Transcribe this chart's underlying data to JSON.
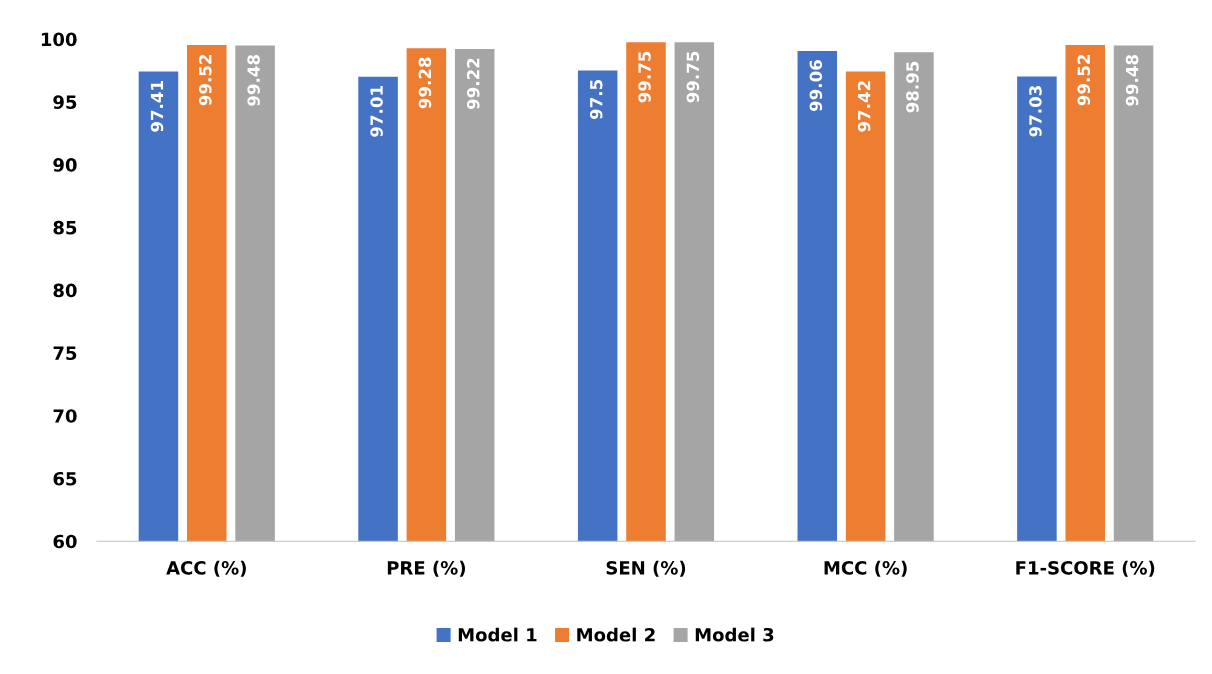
{
  "chart_data": {
    "type": "bar",
    "categories": [
      "ACC (%)",
      "PRE (%)",
      "SEN (%)",
      "MCC (%)",
      "F1-SCORE (%)"
    ],
    "series": [
      {
        "name": "Model 1",
        "color": "#4472c4",
        "values": [
          97.41,
          97.01,
          97.5,
          99.06,
          97.03
        ]
      },
      {
        "name": "Model 2",
        "color": "#ed7d31",
        "values": [
          99.52,
          99.28,
          99.75,
          97.42,
          99.52
        ]
      },
      {
        "name": "Model 3",
        "color": "#a5a5a5",
        "values": [
          99.48,
          99.22,
          99.75,
          98.95,
          99.48
        ]
      }
    ],
    "ylim": [
      60,
      100
    ],
    "yticks": [
      60,
      65,
      70,
      75,
      80,
      85,
      90,
      95,
      100
    ],
    "grid": false,
    "legend": "bottom",
    "data_labels": true
  }
}
